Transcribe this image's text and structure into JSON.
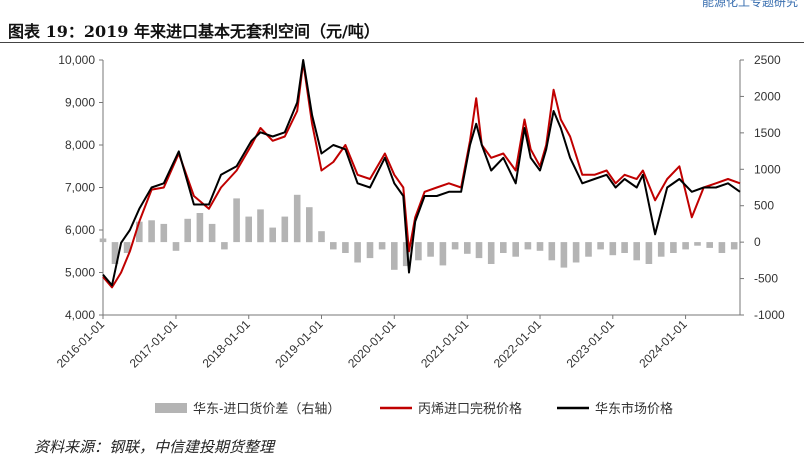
{
  "header": {
    "tag": "能源化工专题研究"
  },
  "title": "图表 19：2019 年来进口基本无套利空间（元/吨）",
  "source": "资料来源：钢联，中信建投期货整理",
  "chart_data": {
    "type": "line",
    "x_tick_labels": [
      "2016-01-01",
      "2017-01-01",
      "2018-01-01",
      "2019-01-01",
      "2020-01-01",
      "2021-01-01",
      "2022-01-01",
      "2023-01-01",
      "2024-01-01"
    ],
    "xlim": [
      "2016-01-01",
      "2024-09-30"
    ],
    "y_left": {
      "lim": [
        4000,
        10000
      ],
      "ticks": [
        4000,
        5000,
        6000,
        7000,
        8000,
        9000,
        10000
      ],
      "tick_labels": [
        "4,000",
        "5,000",
        "6,000",
        "7,000",
        "8,000",
        "9,000",
        "10,000"
      ]
    },
    "y_right": {
      "lim": [
        -1000,
        2500
      ],
      "ticks": [
        -1000,
        -500,
        0,
        500,
        1000,
        1500,
        2000,
        2500
      ],
      "tick_labels": [
        "-1000",
        "-500",
        "0",
        "500",
        "1000",
        "1500",
        "2000",
        "2500"
      ]
    },
    "series": [
      {
        "name": "华东-进口货价差（右轴）",
        "type": "bar",
        "axis": "right",
        "color": "#b4b4b4",
        "x": [
          "2016-01-01",
          "2016-03-01",
          "2016-05-01",
          "2016-07-01",
          "2016-09-01",
          "2016-11-01",
          "2017-01-01",
          "2017-03-01",
          "2017-05-01",
          "2017-07-01",
          "2017-09-01",
          "2017-11-01",
          "2018-01-01",
          "2018-03-01",
          "2018-05-01",
          "2018-07-01",
          "2018-09-01",
          "2018-11-01",
          "2019-01-01",
          "2019-03-01",
          "2019-05-01",
          "2019-07-01",
          "2019-09-01",
          "2019-11-01",
          "2020-01-01",
          "2020-03-01",
          "2020-05-01",
          "2020-07-01",
          "2020-09-01",
          "2020-11-01",
          "2021-01-01",
          "2021-03-01",
          "2021-05-01",
          "2021-07-01",
          "2021-09-01",
          "2021-11-01",
          "2022-01-01",
          "2022-03-01",
          "2022-05-01",
          "2022-07-01",
          "2022-09-01",
          "2022-11-01",
          "2023-01-01",
          "2023-03-01",
          "2023-05-01",
          "2023-07-01",
          "2023-09-01",
          "2023-11-01",
          "2024-01-01",
          "2024-03-01",
          "2024-05-01",
          "2024-07-01",
          "2024-09-01"
        ],
        "values": [
          50,
          -300,
          -150,
          280,
          300,
          250,
          -120,
          320,
          400,
          250,
          -100,
          600,
          350,
          450,
          200,
          350,
          650,
          480,
          150,
          -100,
          -150,
          -280,
          -220,
          -100,
          -380,
          -330,
          -250,
          -200,
          -320,
          -100,
          -160,
          -220,
          -300,
          -150,
          -200,
          -100,
          -120,
          -250,
          -350,
          -280,
          -200,
          -100,
          -180,
          -150,
          -250,
          -300,
          -200,
          -150,
          -100,
          -50,
          -80,
          -150,
          -100
        ]
      },
      {
        "name": "丙烯进口完税价格",
        "type": "line",
        "axis": "left",
        "color": "#c00000",
        "x": [
          "2016-01-01",
          "2016-02-15",
          "2016-04-01",
          "2016-05-15",
          "2016-07-01",
          "2016-09-01",
          "2016-11-01",
          "2017-01-15",
          "2017-04-01",
          "2017-06-15",
          "2017-08-15",
          "2017-11-01",
          "2018-01-15",
          "2018-03-01",
          "2018-05-01",
          "2018-07-01",
          "2018-09-01",
          "2018-10-01",
          "2018-11-15",
          "2019-01-01",
          "2019-03-01",
          "2019-05-01",
          "2019-07-01",
          "2019-09-01",
          "2019-11-15",
          "2020-01-01",
          "2020-02-15",
          "2020-03-15",
          "2020-04-15",
          "2020-06-01",
          "2020-08-01",
          "2020-10-01",
          "2020-12-01",
          "2021-01-15",
          "2021-02-15",
          "2021-03-15",
          "2021-05-01",
          "2021-07-01",
          "2021-09-01",
          "2021-10-15",
          "2021-11-15",
          "2022-01-01",
          "2022-02-01",
          "2022-03-10",
          "2022-04-15",
          "2022-06-01",
          "2022-08-01",
          "2022-10-01",
          "2022-12-01",
          "2023-01-15",
          "2023-03-01",
          "2023-05-01",
          "2023-06-01",
          "2023-08-01",
          "2023-10-01",
          "2023-12-01",
          "2024-02-01",
          "2024-04-01",
          "2024-06-01",
          "2024-08-01",
          "2024-09-30"
        ],
        "values": [
          4900,
          4650,
          5000,
          5500,
          6200,
          6950,
          7000,
          7800,
          6800,
          6500,
          7000,
          7400,
          8000,
          8400,
          8100,
          8200,
          8800,
          9950,
          8500,
          7400,
          7600,
          8000,
          7300,
          7200,
          7800,
          7300,
          7000,
          5500,
          6300,
          6900,
          7000,
          7100,
          7000,
          8100,
          9100,
          8000,
          7700,
          7800,
          7400,
          8600,
          7900,
          7500,
          8000,
          9300,
          8600,
          8200,
          7300,
          7300,
          7400,
          7100,
          7300,
          7200,
          7400,
          6700,
          7200,
          7500,
          6300,
          7000,
          7100,
          7200,
          7100
        ]
      },
      {
        "name": "华东市场价格",
        "type": "line",
        "axis": "left",
        "color": "#000000",
        "x": [
          "2016-01-01",
          "2016-02-15",
          "2016-04-01",
          "2016-05-15",
          "2016-07-01",
          "2016-09-01",
          "2016-11-01",
          "2017-01-15",
          "2017-04-01",
          "2017-06-15",
          "2017-08-15",
          "2017-11-01",
          "2018-01-15",
          "2018-03-01",
          "2018-05-01",
          "2018-07-01",
          "2018-09-01",
          "2018-10-01",
          "2018-11-15",
          "2019-01-01",
          "2019-03-01",
          "2019-05-01",
          "2019-07-01",
          "2019-09-01",
          "2019-11-15",
          "2020-01-01",
          "2020-02-15",
          "2020-03-15",
          "2020-04-15",
          "2020-06-01",
          "2020-08-01",
          "2020-10-01",
          "2020-12-01",
          "2021-01-15",
          "2021-02-15",
          "2021-03-15",
          "2021-05-01",
          "2021-07-01",
          "2021-09-01",
          "2021-10-15",
          "2021-11-15",
          "2022-01-01",
          "2022-02-01",
          "2022-03-10",
          "2022-04-15",
          "2022-06-01",
          "2022-08-01",
          "2022-10-01",
          "2022-12-01",
          "2023-01-15",
          "2023-03-01",
          "2023-05-01",
          "2023-06-01",
          "2023-08-01",
          "2023-10-01",
          "2023-12-01",
          "2024-02-01",
          "2024-04-01",
          "2024-06-01",
          "2024-08-01",
          "2024-09-30"
        ],
        "values": [
          4950,
          4700,
          5700,
          6000,
          6500,
          7000,
          7100,
          7850,
          6600,
          6600,
          7300,
          7500,
          8100,
          8300,
          8200,
          8300,
          9000,
          10000,
          8700,
          7800,
          8000,
          7900,
          7100,
          7000,
          7700,
          7100,
          6800,
          5000,
          6200,
          6800,
          6800,
          6900,
          6900,
          8000,
          8500,
          8000,
          7400,
          7700,
          7100,
          8400,
          7700,
          7400,
          7900,
          8800,
          8400,
          7700,
          7100,
          7200,
          7300,
          7000,
          7200,
          7000,
          7300,
          5900,
          7000,
          7200,
          6900,
          7000,
          7000,
          7100,
          6900
        ]
      }
    ]
  }
}
